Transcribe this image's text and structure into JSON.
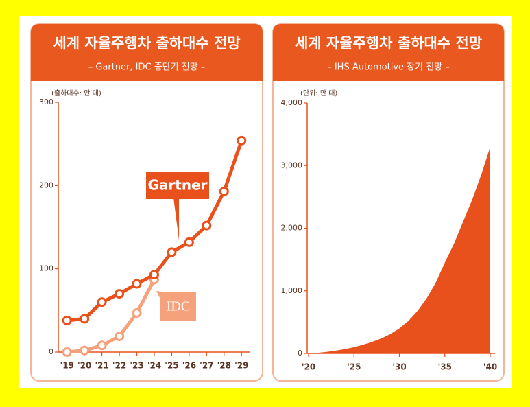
{
  "chart_data": [
    {
      "type": "line",
      "title": "세계 자율주행차 출하대수 전망",
      "subtitle": "– Gartner, IDC 중단기 전망 –",
      "y_label": "(출하대수: 만 대)",
      "categories": [
        "'19",
        "'20",
        "'21",
        "'22",
        "'23",
        "'24",
        "'25",
        "'26",
        "'27",
        "'28",
        "'29"
      ],
      "series": [
        {
          "name": "Gartner",
          "color": "#e8501c",
          "values": [
            38,
            40,
            60,
            70,
            82,
            93,
            120,
            132,
            152,
            193,
            254
          ]
        },
        {
          "name": "IDC",
          "color": "#f5a27c",
          "values": [
            0,
            2,
            8,
            19,
            47,
            87,
            null,
            null,
            null,
            null,
            null
          ]
        }
      ],
      "ylim": [
        0,
        300
      ],
      "yticks": [
        0,
        100,
        200,
        300
      ]
    },
    {
      "type": "area",
      "title": "세계 자율주행차 출하대수 전망",
      "subtitle": "– IHS Automotive 장기 전망 –",
      "y_label": "(단위: 만 대)",
      "x": [
        2020,
        2021,
        2022,
        2023,
        2024,
        2025,
        2026,
        2027,
        2028,
        2029,
        2030,
        2031,
        2032,
        2033,
        2034,
        2035,
        2036,
        2037,
        2038,
        2039,
        2040
      ],
      "values": [
        0,
        10,
        25,
        45,
        70,
        100,
        140,
        185,
        240,
        310,
        400,
        520,
        680,
        880,
        1130,
        1450,
        1750,
        2100,
        2450,
        2850,
        3300
      ],
      "color": "#e8501c",
      "xlim": [
        2020,
        2040
      ],
      "xticks": [
        {
          "value": 2020,
          "label": "'20"
        },
        {
          "value": 2025,
          "label": "'25"
        },
        {
          "value": 2030,
          "label": "'30"
        },
        {
          "value": 2035,
          "label": "'35"
        },
        {
          "value": 2040,
          "label": "'40"
        }
      ],
      "ylim": [
        0,
        4000
      ],
      "yticks": [
        0,
        {
          "value": 1000,
          "label": "1,000"
        },
        {
          "value": 2000,
          "label": "2,000"
        },
        {
          "value": 3000,
          "label": "3,000"
        },
        {
          "value": 4000,
          "label": "4,000"
        }
      ]
    }
  ]
}
